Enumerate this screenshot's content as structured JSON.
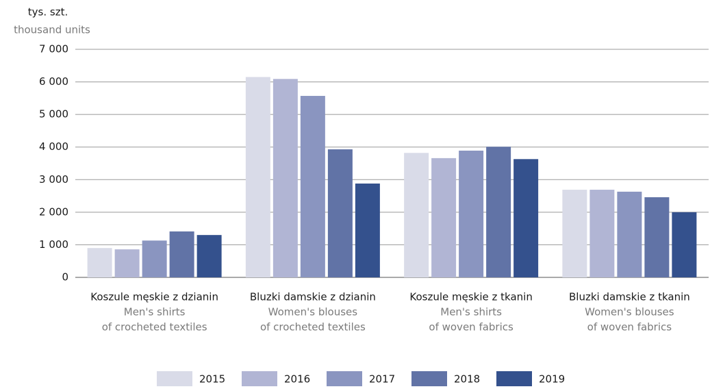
{
  "chart_data": {
    "type": "bar",
    "y_label": "tys. szt.",
    "y_label_en": "thousand units",
    "categories": [
      "Koszule męskie z dzianin",
      "Bluzki damskie z dzianin",
      "Koszule męskie z tkanin",
      "Bluzki damskie z tkanin"
    ],
    "categories_en": [
      [
        "Men's  shirts",
        "of crocheted textiles"
      ],
      [
        "Women's blouses",
        "of crocheted textiles"
      ],
      [
        "Men's shirts",
        "of woven fabrics"
      ],
      [
        "Women's  blouses",
        "of woven fabrics"
      ]
    ],
    "series": [
      {
        "name": "2015",
        "color": "#d9dbe8",
        "values": [
          900,
          6150,
          3820,
          2690
        ]
      },
      {
        "name": "2016",
        "color": "#b1b5d4",
        "values": [
          860,
          6090,
          3660,
          2690
        ]
      },
      {
        "name": "2017",
        "color": "#8a95c0",
        "values": [
          1130,
          5570,
          3890,
          2630
        ]
      },
      {
        "name": "2018",
        "color": "#6173a6",
        "values": [
          1410,
          3930,
          4010,
          2460
        ]
      },
      {
        "name": "2019",
        "color": "#34518d",
        "values": [
          1300,
          2880,
          3630,
          2000
        ]
      }
    ],
    "ylim": [
      0,
      7000
    ],
    "yticks": [
      {
        "value": 0,
        "label": "0"
      },
      {
        "value": 1000,
        "label": "1 000"
      },
      {
        "value": 2000,
        "label": "2 000"
      },
      {
        "value": 3000,
        "label": "3 000"
      },
      {
        "value": 4000,
        "label": "4 000"
      },
      {
        "value": 5000,
        "label": "5 000"
      },
      {
        "value": 6000,
        "label": "6 000"
      },
      {
        "value": 7000,
        "label": "7 000"
      }
    ],
    "grid": true,
    "legend": "bottom"
  }
}
